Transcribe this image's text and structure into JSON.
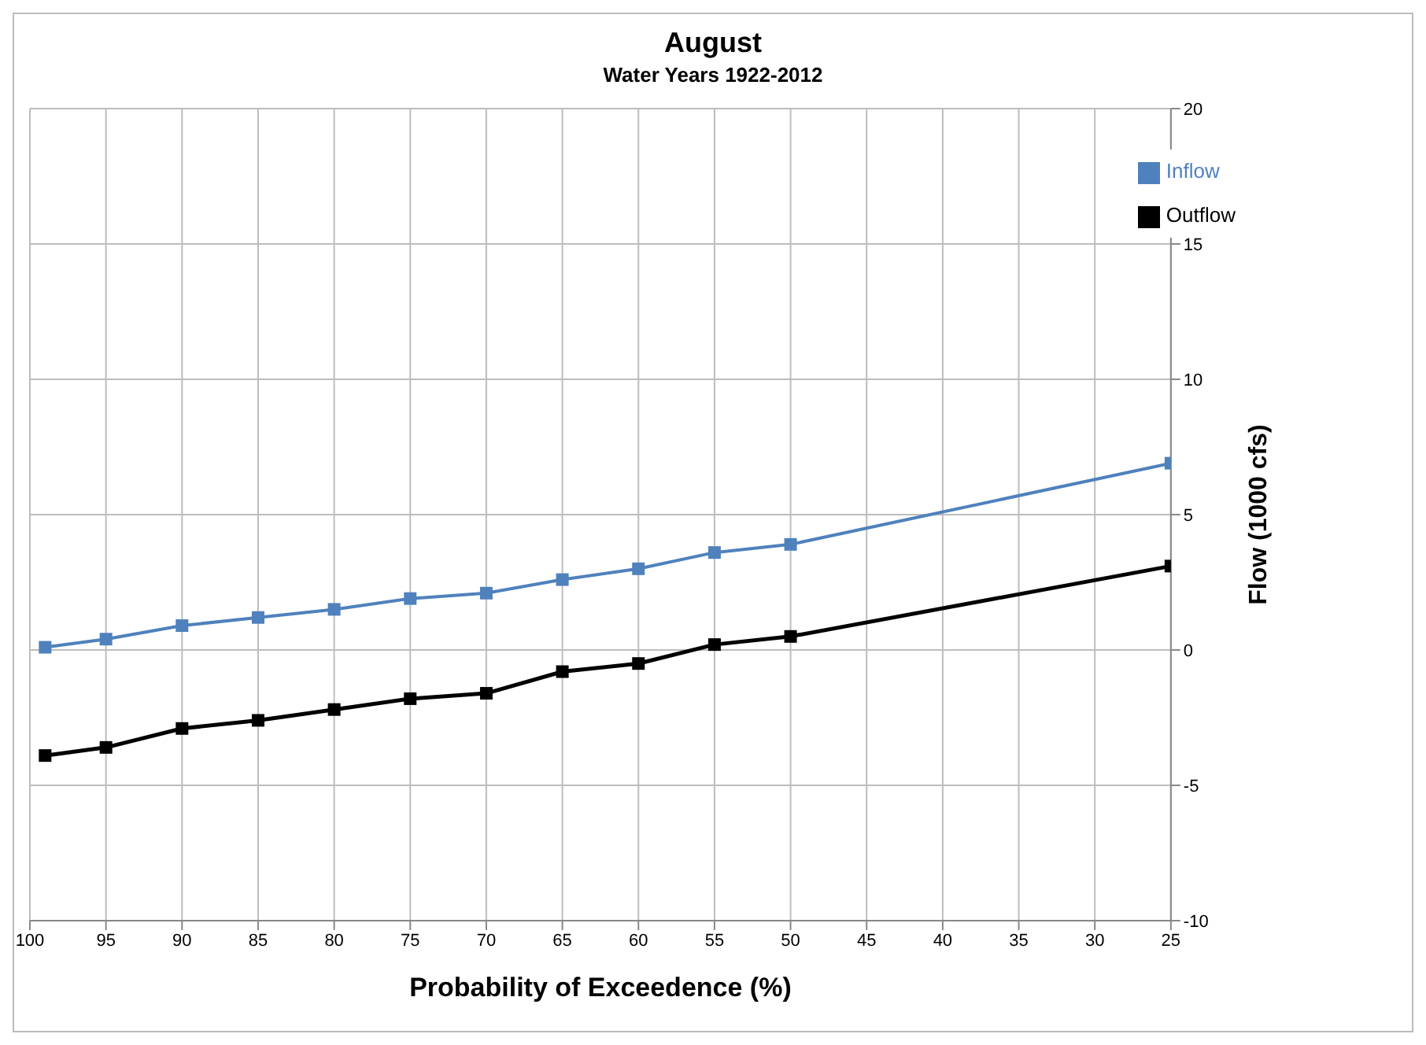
{
  "chart_data": {
    "type": "line",
    "title": "August",
    "subtitle": "Water Years 1922-2012",
    "xlabel": "Probability of Exceedence (%)",
    "ylabel": "Flow (1000 cfs)",
    "x": [
      99,
      95,
      90,
      85,
      80,
      75,
      70,
      65,
      60,
      55,
      50,
      25
    ],
    "series": [
      {
        "name": "Inflow",
        "color": "#4f81bd",
        "values": [
          0.1,
          0.4,
          0.9,
          1.2,
          1.5,
          1.9,
          2.1,
          2.6,
          3.0,
          3.6,
          3.9,
          6.9
        ]
      },
      {
        "name": "Outflow",
        "color": "#000000",
        "values": [
          -3.9,
          -3.6,
          -2.9,
          -2.6,
          -2.2,
          -1.8,
          -1.6,
          -0.8,
          -0.5,
          0.2,
          0.5,
          3.1
        ]
      }
    ],
    "xlim": [
      100,
      25
    ],
    "xticks": [
      100,
      95,
      90,
      85,
      80,
      75,
      70,
      65,
      60,
      55,
      50,
      45,
      40,
      35,
      30,
      25
    ],
    "ylim": [
      -10,
      20
    ],
    "yticks": [
      -10,
      -5,
      0,
      5,
      10,
      15,
      20
    ],
    "grid": true,
    "legend": "top right",
    "marker": "square",
    "line_style": "solid"
  }
}
